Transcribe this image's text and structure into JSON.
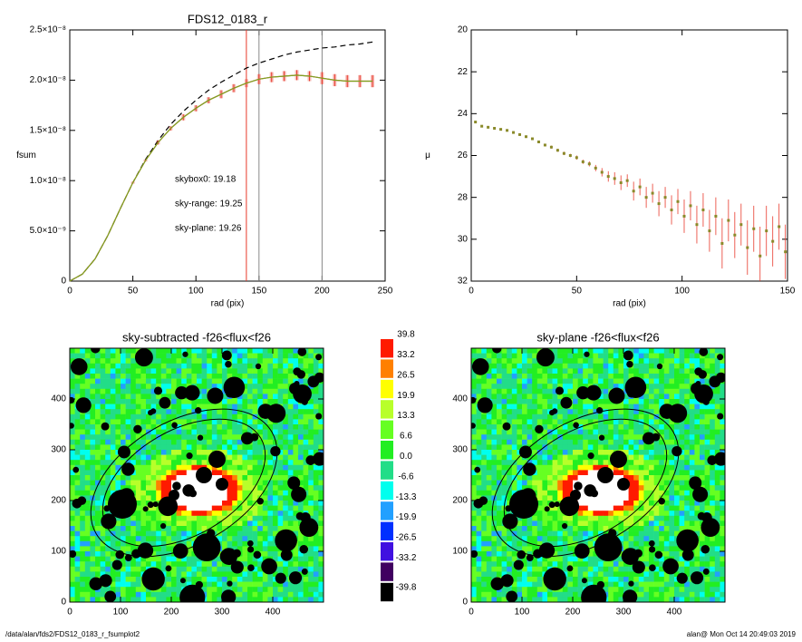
{
  "chart_data": [
    {
      "type": "line",
      "title": "FDS12_0183_r",
      "xlabel": "rad (pix)",
      "ylabel": "fsum",
      "xlim": [
        0,
        250
      ],
      "xticks": [
        0,
        50,
        100,
        150,
        200,
        250
      ],
      "ylim": [
        0,
        2.5e-08
      ],
      "yticks": [
        0,
        {
          "value": 5e-09,
          "label": "5.0×10⁻⁹"
        },
        {
          "value": 1e-08,
          "label": "1.0×10⁻⁸"
        },
        {
          "value": 1.5e-08,
          "label": "1.5×10⁻⁸"
        },
        {
          "value": 2e-08,
          "label": "2.0×10⁻⁸"
        },
        {
          "value": 2.5e-08,
          "label": "2.5×10⁻⁸"
        }
      ],
      "x": [
        0,
        10,
        20,
        30,
        40,
        50,
        60,
        70,
        80,
        90,
        100,
        110,
        120,
        130,
        140,
        150,
        160,
        170,
        180,
        190,
        200,
        210,
        220,
        230,
        240
      ],
      "series": [
        {
          "color": "#000000",
          "dashed": true,
          "values": [
            0,
            7e-10,
            2.2e-09,
            4.5e-09,
            7.2e-09,
            9.8e-09,
            1.21e-08,
            1.4e-08,
            1.56e-08,
            1.69e-08,
            1.8e-08,
            1.9e-08,
            1.98e-08,
            2.05e-08,
            2.12e-08,
            2.17e-08,
            2.21e-08,
            2.25e-08,
            2.28e-08,
            2.3e-08,
            2.32e-08,
            2.33e-08,
            2.35e-08,
            2.36e-08,
            2.38e-08
          ]
        },
        {
          "color": "#e8392b",
          "values": [
            0,
            7e-10,
            2.2e-09,
            4.5e-09,
            7.2e-09,
            9.8e-09,
            1.2e-08,
            1.38e-08,
            1.52e-08,
            1.63e-08,
            1.72e-08,
            1.8e-08,
            1.86e-08,
            1.92e-08,
            1.97e-08,
            2.01e-08,
            2.03e-08,
            2.04e-08,
            2.05e-08,
            2.04e-08,
            2.02e-08,
            2e-08,
            1.99e-08,
            1.99e-08,
            1.99e-08
          ],
          "errors": [
            0,
            0,
            0,
            0,
            0,
            1e-10,
            1e-10,
            2e-10,
            2e-10,
            3e-10,
            3e-10,
            3e-10,
            4e-10,
            4e-10,
            4e-10,
            5e-10,
            5e-10,
            5e-10,
            5e-10,
            5e-10,
            6e-10,
            6e-10,
            6e-10,
            6e-10,
            6e-10
          ]
        },
        {
          "color": "#7aa420",
          "values": [
            0,
            7e-10,
            2.2e-09,
            4.5e-09,
            7.2e-09,
            9.8e-09,
            1.2e-08,
            1.38e-08,
            1.52e-08,
            1.63e-08,
            1.72e-08,
            1.8e-08,
            1.86e-08,
            1.92e-08,
            1.97e-08,
            2.01e-08,
            2.03e-08,
            2.04e-08,
            2.05e-08,
            2.04e-08,
            2.02e-08,
            2e-08,
            1.99e-08,
            1.99e-08,
            1.99e-08
          ]
        }
      ],
      "vlines": [
        {
          "x": 140,
          "color": "#e8392b"
        },
        {
          "x": 150,
          "color": "#888888"
        },
        {
          "x": 200,
          "color": "#888888"
        }
      ],
      "annotations": [
        {
          "text": "skybox0: 19.18",
          "color": "#000000"
        },
        {
          "text": "sky-range: 19.25",
          "color": "#e8392b"
        },
        {
          "text": "sky-plane: 19.26",
          "color": "#22dd22"
        }
      ]
    },
    {
      "type": "scatter",
      "xlabel": "rad (pix)",
      "ylabel": "μ",
      "xlim": [
        0,
        150
      ],
      "xticks": [
        0,
        50,
        100,
        150
      ],
      "ylim": [
        20,
        32
      ],
      "yticks": [
        20,
        22,
        24,
        26,
        28,
        30,
        32
      ],
      "inverted": true,
      "x": [
        2,
        5,
        8,
        11,
        14,
        17,
        20,
        23,
        26,
        29,
        32,
        35,
        38,
        41,
        44,
        47,
        50,
        53,
        56,
        59,
        62,
        65,
        68,
        71,
        74,
        77,
        80,
        83,
        86,
        89,
        92,
        95,
        98,
        101,
        104,
        107,
        110,
        113,
        116,
        119,
        122,
        125,
        128,
        131,
        134,
        137,
        140,
        143,
        146,
        149
      ],
      "values": [
        24.4,
        24.6,
        24.65,
        24.7,
        24.75,
        24.8,
        24.9,
        25.0,
        25.1,
        25.2,
        25.35,
        25.5,
        25.6,
        25.75,
        25.9,
        26.0,
        26.1,
        26.3,
        26.4,
        26.6,
        26.8,
        27.0,
        27.1,
        27.3,
        27.2,
        27.7,
        27.5,
        28.0,
        27.8,
        28.3,
        28.0,
        28.6,
        28.2,
        28.9,
        28.4,
        29.3,
        28.6,
        29.6,
        28.9,
        30.2,
        29.1,
        29.8,
        29.3,
        30.4,
        29.5,
        30.8,
        29.6,
        30.1,
        29.4,
        30.6
      ],
      "errors": [
        0.05,
        0.05,
        0.05,
        0.05,
        0.05,
        0.05,
        0.05,
        0.05,
        0.05,
        0.05,
        0.06,
        0.06,
        0.07,
        0.07,
        0.08,
        0.08,
        0.1,
        0.1,
        0.12,
        0.15,
        0.2,
        0.25,
        0.3,
        0.35,
        0.3,
        0.45,
        0.4,
        0.5,
        0.45,
        0.6,
        0.5,
        0.7,
        0.6,
        0.8,
        0.7,
        0.9,
        0.8,
        1.0,
        0.9,
        1.2,
        1.0,
        1.1,
        1.0,
        1.3,
        1.1,
        1.4,
        1.2,
        1.2,
        1.1,
        1.3
      ],
      "color": "#8a8a2a",
      "error_color": "#e8392b"
    },
    {
      "type": "image",
      "title": "sky-subtracted -f26<flux<f26",
      "xlim": [
        0,
        500
      ],
      "ylim": [
        0,
        500
      ],
      "xticks": [
        0,
        100,
        200,
        300,
        400
      ],
      "yticks": [
        0,
        100,
        200,
        300,
        400
      ]
    },
    {
      "type": "image",
      "title": "sky-plane -f26<flux<f26",
      "xlim": [
        0,
        500
      ],
      "ylim": [
        0,
        500
      ],
      "xticks": [
        0,
        100,
        200,
        300,
        400
      ],
      "yticks": [
        0,
        100,
        200,
        300,
        400
      ]
    },
    {
      "type": "colorbar",
      "labels": [
        39.8,
        33.2,
        26.5,
        19.9,
        13.3,
        6.6,
        {
          "value": 0,
          "label": "0.0"
        },
        -6.6,
        -13.3,
        -19.9,
        -26.5,
        -33.2,
        -39.8
      ],
      "colors": [
        "#ff1a00",
        "#ff8000",
        "#ffff00",
        "#b8ff2a",
        "#66ff22",
        "#22ee22",
        "#22dd88",
        "#00ffee",
        "#22a0ff",
        "#0030ff",
        "#4010e0",
        "#400060",
        "#000000"
      ]
    }
  ],
  "footer": {
    "path": "/data/alan/fds2/FDS12_0183_r_fsumplot2",
    "stamp": "alan@  Mon Oct 14 20:49:03 2019"
  }
}
